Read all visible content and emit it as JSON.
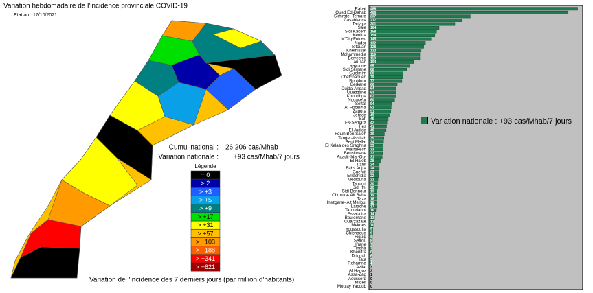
{
  "map": {
    "title": "Variation hebdomadaire de l'incidence provinciale COVID-19",
    "date": "Etat au : 17/10/2021",
    "cumul_label": "Cumul national :",
    "cumul_value": "26 206 cas/Mhab",
    "variation_label": "Variation nationale :",
    "variation_value": "+93 cas/Mhab/7 jours",
    "legend": {
      "title": "Légende",
      "items": [
        {
          "label": "= 0",
          "color": "#000000"
        },
        {
          "label": "≥ 2",
          "color": "#0000a8"
        },
        {
          "label": "> +3",
          "color": "#1f5fff"
        },
        {
          "label": "> +5",
          "color": "#0aa0e8"
        },
        {
          "label": "> +9",
          "color": "#008080"
        },
        {
          "label": "> +17",
          "color": "#00e000"
        },
        {
          "label": "> +31",
          "color": "#ffff00"
        },
        {
          "label": "> +57",
          "color": "#ffc000"
        },
        {
          "label": "> +103",
          "color": "#ff9a00"
        },
        {
          "label": "> +188",
          "color": "#ff6000"
        },
        {
          "label": "> +341",
          "color": "#ff0000"
        },
        {
          "label": "> +621",
          "color": "#a00000"
        }
      ]
    },
    "caption": "Variation de l'incidence des 7 derniers jours (par million d'habitants)"
  },
  "chart_data": {
    "type": "barh",
    "categories": [
      "Rabat",
      "Oued Ed-Dahab",
      "Skhirate- Temara",
      "Casablanca",
      "Tarfaya",
      "Sale",
      "Sidi Kacem",
      "Kenitra",
      "M'Diq-Fnideq",
      "Nador",
      "Tetouan",
      "Khemisset",
      "Mohammedia",
      "Berrechid",
      "Tan Tan",
      "Laayoune",
      "Sidi Slimane",
      "Guelmim",
      "Chefchaouen",
      "Boujdour",
      "Berkane",
      "Oujda-Angad",
      "Ouezzane",
      "Khouribga",
      "Nouaceur",
      "Settat",
      "Al Hoceima",
      "Zagora",
      "Jerada",
      "Safi",
      "Es-Semara",
      "Fes",
      "El Jadida",
      "Fquih Ben Saleh",
      "Tanger-Assilah",
      "Beni Mellal",
      "El Kelaa des Sraghna",
      "Marrakech",
      "Benslimane",
      "Agadir-Ida -Ou-",
      "El Hajeb",
      "Tiznit",
      "Fahs Anjra",
      "Guercif",
      "Errachidia",
      "Mediouna",
      "Taourirt",
      "Sidi Ifni",
      "Sidi Bennour",
      "Chtouka- Ait Baha",
      "Taza",
      "Inezgane- Ait Melloul",
      "Larache",
      "Taroudannt",
      "Essaouira",
      "Boulemane",
      "Ouarzazate",
      "Meknes",
      "Youssoufia",
      "Chichaoua",
      "Figuig",
      "Sefrou",
      "Ifrane",
      "Tinghir",
      "Khenifra",
      "Driouch",
      "Tata",
      "Rehamna",
      "Azilal",
      "Al Haouz",
      "Assa-Zag",
      "Aousserd",
      "Midelt",
      "Moulay Yacoub"
    ],
    "series": [
      {
        "name": "Variation nationale : +93 cas/Mhab/7 jours",
        "color": "#1f7a4f",
        "values": [
          488,
          466,
          237,
          217,
          201,
          164,
          158,
          154,
          145,
          132,
          128,
          122,
          119,
          119,
          104,
          95,
          88,
          80,
          79,
          77,
          66,
          64,
          63,
          62,
          60,
          54,
          52,
          51,
          49,
          45,
          42,
          41,
          40,
          36,
          35,
          34,
          33,
          33,
          32,
          31,
          28,
          24,
          24,
          23,
          22,
          21,
          20,
          20,
          19,
          19,
          18,
          18,
          17,
          16,
          14,
          13,
          12,
          10,
          9,
          9,
          8,
          8,
          7,
          7,
          6,
          6,
          5,
          4,
          3,
          2,
          1,
          0,
          0,
          0
        ]
      }
    ],
    "xlim": [
      0,
      500
    ],
    "background": "#c0c0c0"
  }
}
